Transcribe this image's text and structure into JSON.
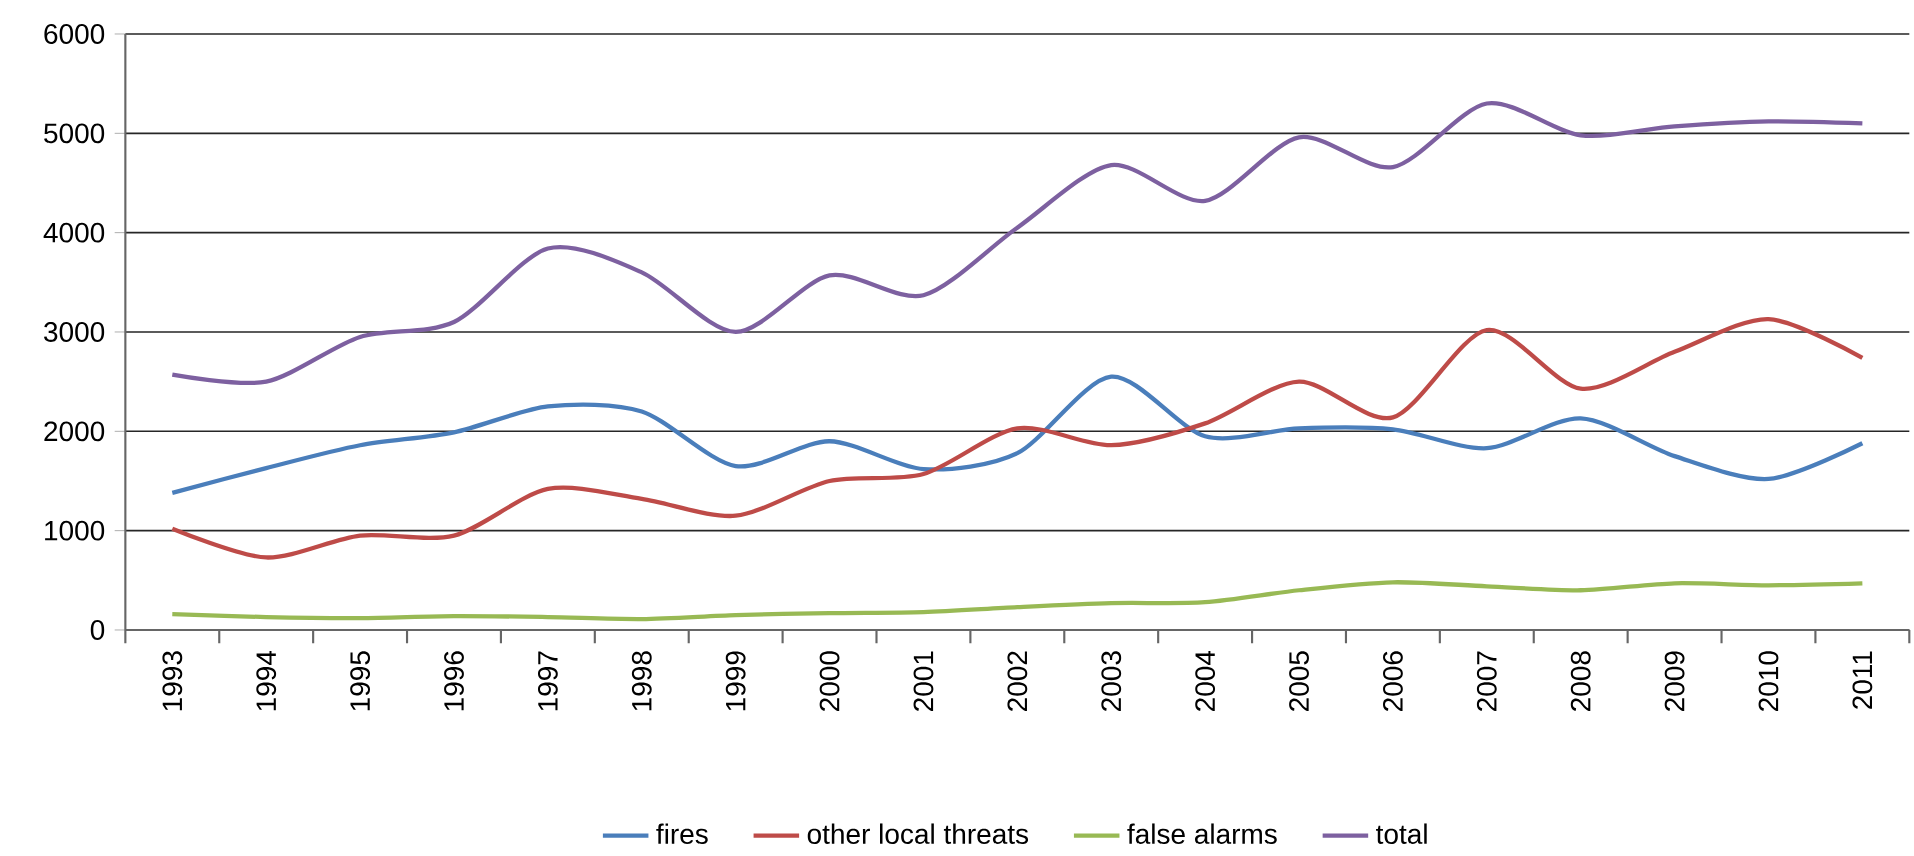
{
  "chart_data": {
    "type": "line",
    "categories": [
      "1993",
      "1994",
      "1995",
      "1996",
      "1997",
      "1998",
      "1999",
      "2000",
      "2001",
      "2002",
      "2003",
      "2004",
      "2005",
      "2006",
      "2007",
      "2008",
      "2009",
      "2010",
      "2011"
    ],
    "series": [
      {
        "name": "fires",
        "color": "#4a7ebb",
        "values": [
          1380,
          1630,
          1860,
          1990,
          2250,
          2200,
          1650,
          1900,
          1620,
          1780,
          2550,
          1950,
          2030,
          2020,
          1830,
          2130,
          1750,
          1520,
          1880
        ]
      },
      {
        "name": "other local threats",
        "color": "#be4b48",
        "values": [
          1020,
          730,
          950,
          950,
          1420,
          1320,
          1150,
          1500,
          1570,
          2030,
          1860,
          2080,
          2500,
          2140,
          3020,
          2430,
          2800,
          3130,
          2740
        ]
      },
      {
        "name": "false alarms",
        "color": "#98b954",
        "values": [
          160,
          130,
          120,
          140,
          130,
          110,
          150,
          170,
          180,
          230,
          270,
          280,
          400,
          480,
          440,
          400,
          470,
          450,
          470
        ]
      },
      {
        "name": "total",
        "color": "#7d60a0",
        "values": [
          2570,
          2500,
          2950,
          3100,
          3840,
          3600,
          3000,
          3570,
          3370,
          4050,
          4680,
          4320,
          4960,
          4660,
          5300,
          4980,
          5070,
          5120,
          5100
        ]
      }
    ],
    "ylim": [
      0,
      6000
    ],
    "yticks": [
      0,
      1000,
      2000,
      3000,
      4000,
      5000,
      6000
    ],
    "grid": "y",
    "legend": "bottom"
  }
}
